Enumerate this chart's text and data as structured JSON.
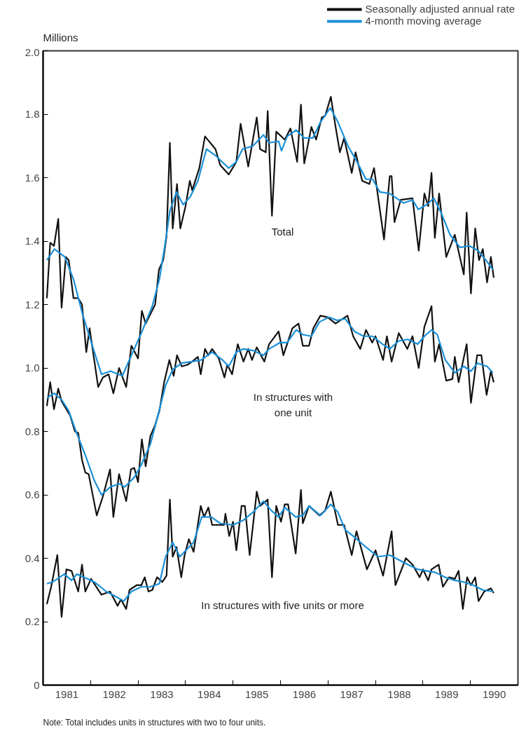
{
  "chart_data": {
    "type": "line",
    "ylabel": "Millions",
    "xlim": [
      1981,
      1991
    ],
    "ylim": [
      0,
      2.0
    ],
    "grid": false,
    "legend": "top right",
    "xticks": [
      {
        "value": 1981.5,
        "label": "1981"
      },
      {
        "value": 1982,
        "label": null
      },
      {
        "value": 1982.5,
        "label": "1982"
      },
      {
        "value": 1983,
        "label": null
      },
      {
        "value": 1983.5,
        "label": "1983"
      },
      {
        "value": 1984,
        "label": null
      },
      {
        "value": 1984.5,
        "label": "1984"
      },
      {
        "value": 1985,
        "label": null
      },
      {
        "value": 1985.5,
        "label": "1985"
      },
      {
        "value": 1986,
        "label": null
      },
      {
        "value": 1986.5,
        "label": "1986"
      },
      {
        "value": 1987,
        "label": null
      },
      {
        "value": 1987.5,
        "label": "1987"
      },
      {
        "value": 1988,
        "label": null
      },
      {
        "value": 1988.5,
        "label": "1988"
      },
      {
        "value": 1989,
        "label": null
      },
      {
        "value": 1989.5,
        "label": "1989"
      },
      {
        "value": 1990,
        "label": null
      },
      {
        "value": 1990.5,
        "label": "1990"
      }
    ],
    "yticks": [
      0,
      0.2,
      0.4,
      0.6,
      0.8,
      {
        "value": 1,
        "label": "1.0"
      },
      1.2,
      1.4,
      1.6,
      1.8,
      {
        "value": 2,
        "label": "2.0"
      }
    ],
    "series": [
      {
        "name": "Seasonally adjusted annual rate",
        "color": "#111111",
        "x": [
          1981.08,
          1981.15,
          1981.23,
          1981.32,
          1981.39,
          1981.48,
          1981.54,
          1981.64,
          1981.74,
          1981.82,
          1981.91,
          1981.98,
          1982.16,
          1982.26,
          1982.38,
          1982.48,
          1982.6,
          1982.75,
          1982.86,
          1983.0,
          1983.08,
          1983.16,
          1983.36,
          1983.44,
          1983.53,
          1983.6,
          1983.67,
          1983.73,
          1983.82,
          1983.89,
          1984.0,
          1984.09,
          1984.14,
          1984.29,
          1984.41,
          1984.63,
          1984.73,
          1984.91,
          1985.07,
          1985.16,
          1985.32,
          1985.5,
          1985.57,
          1985.69,
          1985.73,
          1985.82,
          1985.91,
          1986.09,
          1986.21,
          1986.35,
          1986.43,
          1986.5,
          1986.65,
          1986.75,
          1986.87,
          1986.94,
          1987.06,
          1987.16,
          1987.25,
          1987.34,
          1987.5,
          1987.58,
          1987.72,
          1987.87,
          1987.97,
          1988.18,
          1988.3,
          1988.34,
          1988.4,
          1988.53,
          1988.78,
          1988.91,
          1989.03,
          1989.11,
          1989.18,
          1989.25,
          1989.34,
          1989.49,
          1989.67,
          1989.86,
          1989.92,
          1990.01,
          1990.1,
          1990.18,
          1990.26,
          1990.35,
          1990.43,
          1990.49
        ],
        "values": [
          1.22,
          1.395,
          1.385,
          1.47,
          1.19,
          1.35,
          1.34,
          1.22,
          1.22,
          1.2,
          1.05,
          1.125,
          0.94,
          0.97,
          0.98,
          0.92,
          1.0,
          0.94,
          1.07,
          1.03,
          1.18,
          1.14,
          1.2,
          1.31,
          1.34,
          1.415,
          1.71,
          1.44,
          1.58,
          1.44,
          1.51,
          1.59,
          1.56,
          1.63,
          1.73,
          1.69,
          1.64,
          1.61,
          1.65,
          1.77,
          1.635,
          1.79,
          1.69,
          1.68,
          1.81,
          1.48,
          1.745,
          1.72,
          1.755,
          1.65,
          1.83,
          1.645,
          1.76,
          1.72,
          1.79,
          1.795,
          1.855,
          1.76,
          1.68,
          1.725,
          1.615,
          1.68,
          1.59,
          1.58,
          1.63,
          1.405,
          1.605,
          1.605,
          1.46,
          1.53,
          1.535,
          1.37,
          1.55,
          1.51,
          1.615,
          1.41,
          1.55,
          1.35,
          1.42,
          1.295,
          1.49,
          1.235,
          1.44,
          1.34,
          1.375,
          1.27,
          1.35,
          1.285
        ]
      },
      {
        "name": "4-month moving average",
        "color": "#1a90d8",
        "x": [
          1981.08,
          1981.24,
          1981.46,
          1981.64,
          1981.83,
          1982.08,
          1982.23,
          1982.42,
          1982.67,
          1982.86,
          1983.07,
          1983.3,
          1983.45,
          1983.58,
          1983.67,
          1983.81,
          1983.95,
          1984.1,
          1984.26,
          1984.44,
          1984.63,
          1984.91,
          1985.07,
          1985.2,
          1985.42,
          1985.64,
          1985.76,
          1985.96,
          1986.02,
          1986.14,
          1986.33,
          1986.5,
          1986.68,
          1986.84,
          1987.05,
          1987.21,
          1987.42,
          1987.61,
          1987.8,
          1987.94,
          1988.09,
          1988.3,
          1988.59,
          1988.78,
          1988.9,
          1989.08,
          1989.23,
          1989.38,
          1989.57,
          1989.78,
          1989.97,
          1990.16,
          1990.35,
          1990.47
        ],
        "values": [
          1.34,
          1.375,
          1.35,
          1.28,
          1.17,
          1.05,
          0.98,
          0.99,
          0.975,
          1.04,
          1.11,
          1.195,
          1.28,
          1.4,
          1.495,
          1.555,
          1.515,
          1.54,
          1.59,
          1.69,
          1.67,
          1.63,
          1.65,
          1.69,
          1.7,
          1.735,
          1.71,
          1.715,
          1.685,
          1.73,
          1.75,
          1.725,
          1.725,
          1.775,
          1.82,
          1.775,
          1.7,
          1.65,
          1.595,
          1.595,
          1.555,
          1.55,
          1.52,
          1.53,
          1.5,
          1.515,
          1.535,
          1.49,
          1.42,
          1.38,
          1.385,
          1.37,
          1.335,
          1.31
        ]
      },
      {
        "color": "#111111",
        "x": [
          1981.08,
          1981.15,
          1981.23,
          1981.32,
          1981.39,
          1981.57,
          1981.67,
          1981.74,
          1981.82,
          1981.89,
          1981.96,
          1982.13,
          1982.26,
          1982.41,
          1982.48,
          1982.6,
          1982.75,
          1982.85,
          1982.92,
          1983.0,
          1983.08,
          1983.16,
          1983.26,
          1983.36,
          1983.45,
          1983.55,
          1983.66,
          1983.75,
          1983.82,
          1983.92,
          1984.04,
          1984.14,
          1984.26,
          1984.32,
          1984.41,
          1984.48,
          1984.56,
          1984.7,
          1984.82,
          1984.88,
          1984.98,
          1985.1,
          1985.22,
          1985.32,
          1985.4,
          1985.5,
          1985.66,
          1985.76,
          1985.96,
          1986.06,
          1986.25,
          1986.38,
          1986.47,
          1986.6,
          1986.69,
          1986.84,
          1986.99,
          1987.16,
          1987.41,
          1987.53,
          1987.68,
          1987.8,
          1987.93,
          1988.0,
          1988.16,
          1988.24,
          1988.34,
          1988.49,
          1988.67,
          1988.78,
          1988.91,
          1989.03,
          1989.18,
          1989.25,
          1989.34,
          1989.49,
          1989.62,
          1989.67,
          1989.75,
          1989.92,
          1990.01,
          1990.14,
          1990.23,
          1990.34,
          1990.43,
          1990.49
        ],
        "values": [
          0.88,
          0.955,
          0.87,
          0.935,
          0.895,
          0.85,
          0.8,
          0.795,
          0.71,
          0.67,
          0.665,
          0.535,
          0.595,
          0.68,
          0.53,
          0.665,
          0.58,
          0.68,
          0.685,
          0.64,
          0.775,
          0.69,
          0.785,
          0.82,
          0.865,
          0.955,
          1.025,
          0.975,
          1.04,
          1.005,
          1.01,
          1.02,
          1.035,
          0.98,
          1.06,
          1.04,
          1.06,
          1.03,
          0.97,
          1.01,
          0.98,
          1.075,
          1.02,
          1.06,
          1.025,
          1.065,
          1.02,
          1.075,
          1.115,
          1.04,
          1.125,
          1.14,
          1.07,
          1.07,
          1.125,
          1.165,
          1.16,
          1.14,
          1.165,
          1.1,
          1.06,
          1.12,
          1.08,
          1.1,
          1.025,
          1.1,
          1.02,
          1.11,
          1.06,
          1.1,
          1.0,
          1.13,
          1.195,
          1.02,
          1.075,
          0.96,
          0.965,
          1.035,
          0.955,
          1.075,
          0.89,
          1.04,
          1.04,
          0.915,
          0.99,
          0.955
        ]
      },
      {
        "color": "#1a90d8",
        "x": [
          1981.08,
          1981.23,
          1981.39,
          1981.54,
          1981.68,
          1981.89,
          1982.08,
          1982.23,
          1982.42,
          1982.6,
          1982.72,
          1982.92,
          1983.07,
          1983.26,
          1983.41,
          1983.58,
          1983.73,
          1983.92,
          1984.14,
          1984.33,
          1984.56,
          1984.78,
          1984.91,
          1985.07,
          1985.22,
          1985.42,
          1985.64,
          1985.76,
          1985.99,
          1986.14,
          1986.33,
          1986.47,
          1986.65,
          1986.82,
          1987.02,
          1987.19,
          1987.36,
          1987.56,
          1987.75,
          1987.94,
          1988.15,
          1988.3,
          1988.49,
          1988.68,
          1988.89,
          1989.03,
          1989.18,
          1989.3,
          1989.47,
          1989.67,
          1989.86,
          1990.01,
          1990.15,
          1990.35,
          1990.47
        ],
        "values": [
          0.905,
          0.92,
          0.9,
          0.865,
          0.805,
          0.725,
          0.645,
          0.6,
          0.625,
          0.635,
          0.625,
          0.655,
          0.695,
          0.76,
          0.845,
          0.945,
          0.995,
          1.015,
          1.02,
          1.025,
          1.05,
          1.025,
          1.005,
          1.05,
          1.06,
          1.055,
          1.04,
          1.06,
          1.08,
          1.08,
          1.12,
          1.105,
          1.1,
          1.145,
          1.16,
          1.15,
          1.155,
          1.115,
          1.1,
          1.1,
          1.075,
          1.06,
          1.085,
          1.09,
          1.075,
          1.1,
          1.12,
          1.105,
          1.025,
          0.985,
          1.005,
          0.99,
          1.015,
          1.005,
          0.985
        ]
      },
      {
        "color": "#111111",
        "x": [
          1981.08,
          1981.17,
          1981.3,
          1981.39,
          1981.49,
          1981.6,
          1981.74,
          1981.82,
          1981.89,
          1982.01,
          1982.23,
          1982.41,
          1982.57,
          1982.64,
          1982.75,
          1982.82,
          1982.97,
          1983.07,
          1983.14,
          1983.22,
          1983.3,
          1983.4,
          1983.51,
          1983.6,
          1983.67,
          1983.73,
          1983.81,
          1983.91,
          1983.98,
          1984.07,
          1984.17,
          1984.32,
          1984.39,
          1984.48,
          1984.56,
          1984.81,
          1984.84,
          1984.92,
          1985.0,
          1985.07,
          1985.18,
          1985.25,
          1985.35,
          1985.5,
          1985.57,
          1985.73,
          1985.82,
          1985.91,
          1986.01,
          1986.09,
          1986.16,
          1986.32,
          1986.43,
          1986.47,
          1986.6,
          1986.82,
          1986.94,
          1987.06,
          1987.21,
          1987.34,
          1987.5,
          1987.6,
          1987.82,
          1988.0,
          1988.16,
          1988.34,
          1988.42,
          1988.64,
          1988.78,
          1988.93,
          1989.0,
          1989.11,
          1989.18,
          1989.33,
          1989.42,
          1989.55,
          1989.67,
          1989.75,
          1989.84,
          1989.93,
          1990.01,
          1990.1,
          1990.17,
          1990.29,
          1990.43,
          1990.49
        ],
        "values": [
          0.255,
          0.31,
          0.41,
          0.215,
          0.365,
          0.36,
          0.295,
          0.38,
          0.295,
          0.335,
          0.285,
          0.295,
          0.25,
          0.27,
          0.24,
          0.3,
          0.315,
          0.315,
          0.34,
          0.295,
          0.3,
          0.34,
          0.325,
          0.345,
          0.585,
          0.405,
          0.435,
          0.34,
          0.41,
          0.46,
          0.42,
          0.565,
          0.53,
          0.56,
          0.505,
          0.505,
          0.54,
          0.47,
          0.515,
          0.425,
          0.565,
          0.565,
          0.41,
          0.61,
          0.565,
          0.585,
          0.34,
          0.565,
          0.515,
          0.57,
          0.57,
          0.415,
          0.615,
          0.51,
          0.565,
          0.535,
          0.55,
          0.61,
          0.505,
          0.505,
          0.41,
          0.485,
          0.365,
          0.425,
          0.345,
          0.485,
          0.315,
          0.4,
          0.38,
          0.34,
          0.365,
          0.33,
          0.365,
          0.38,
          0.31,
          0.34,
          0.335,
          0.36,
          0.24,
          0.34,
          0.315,
          0.34,
          0.265,
          0.295,
          0.305,
          0.29
        ]
      },
      {
        "color": "#1a90d8",
        "x": [
          1981.08,
          1981.2,
          1981.45,
          1981.6,
          1981.71,
          1981.94,
          1982.08,
          1982.33,
          1982.52,
          1982.7,
          1982.86,
          1983.07,
          1983.26,
          1983.45,
          1983.58,
          1983.73,
          1983.88,
          1984.04,
          1984.17,
          1984.34,
          1984.54,
          1984.73,
          1985.0,
          1985.22,
          1985.42,
          1985.64,
          1985.81,
          1985.96,
          1986.09,
          1986.32,
          1986.47,
          1986.6,
          1986.84,
          1987.06,
          1987.21,
          1987.36,
          1987.53,
          1987.8,
          1988.05,
          1988.3,
          1988.49,
          1988.68,
          1988.89,
          1989.08,
          1989.27,
          1989.47,
          1989.67,
          1989.86,
          1990.06,
          1990.26,
          1990.48
        ],
        "values": [
          0.32,
          0.325,
          0.35,
          0.33,
          0.35,
          0.335,
          0.325,
          0.295,
          0.28,
          0.265,
          0.295,
          0.31,
          0.31,
          0.32,
          0.405,
          0.45,
          0.405,
          0.43,
          0.45,
          0.53,
          0.53,
          0.51,
          0.505,
          0.52,
          0.545,
          0.58,
          0.55,
          0.53,
          0.56,
          0.53,
          0.535,
          0.565,
          0.535,
          0.57,
          0.545,
          0.49,
          0.47,
          0.435,
          0.405,
          0.41,
          0.395,
          0.38,
          0.365,
          0.36,
          0.355,
          0.34,
          0.33,
          0.325,
          0.315,
          0.3,
          0.295
        ]
      }
    ],
    "annotations": [
      "Total",
      "In structures with\none unit",
      "In structures with five units or more",
      "Note: Total includes units in structures with two to four units."
    ]
  }
}
